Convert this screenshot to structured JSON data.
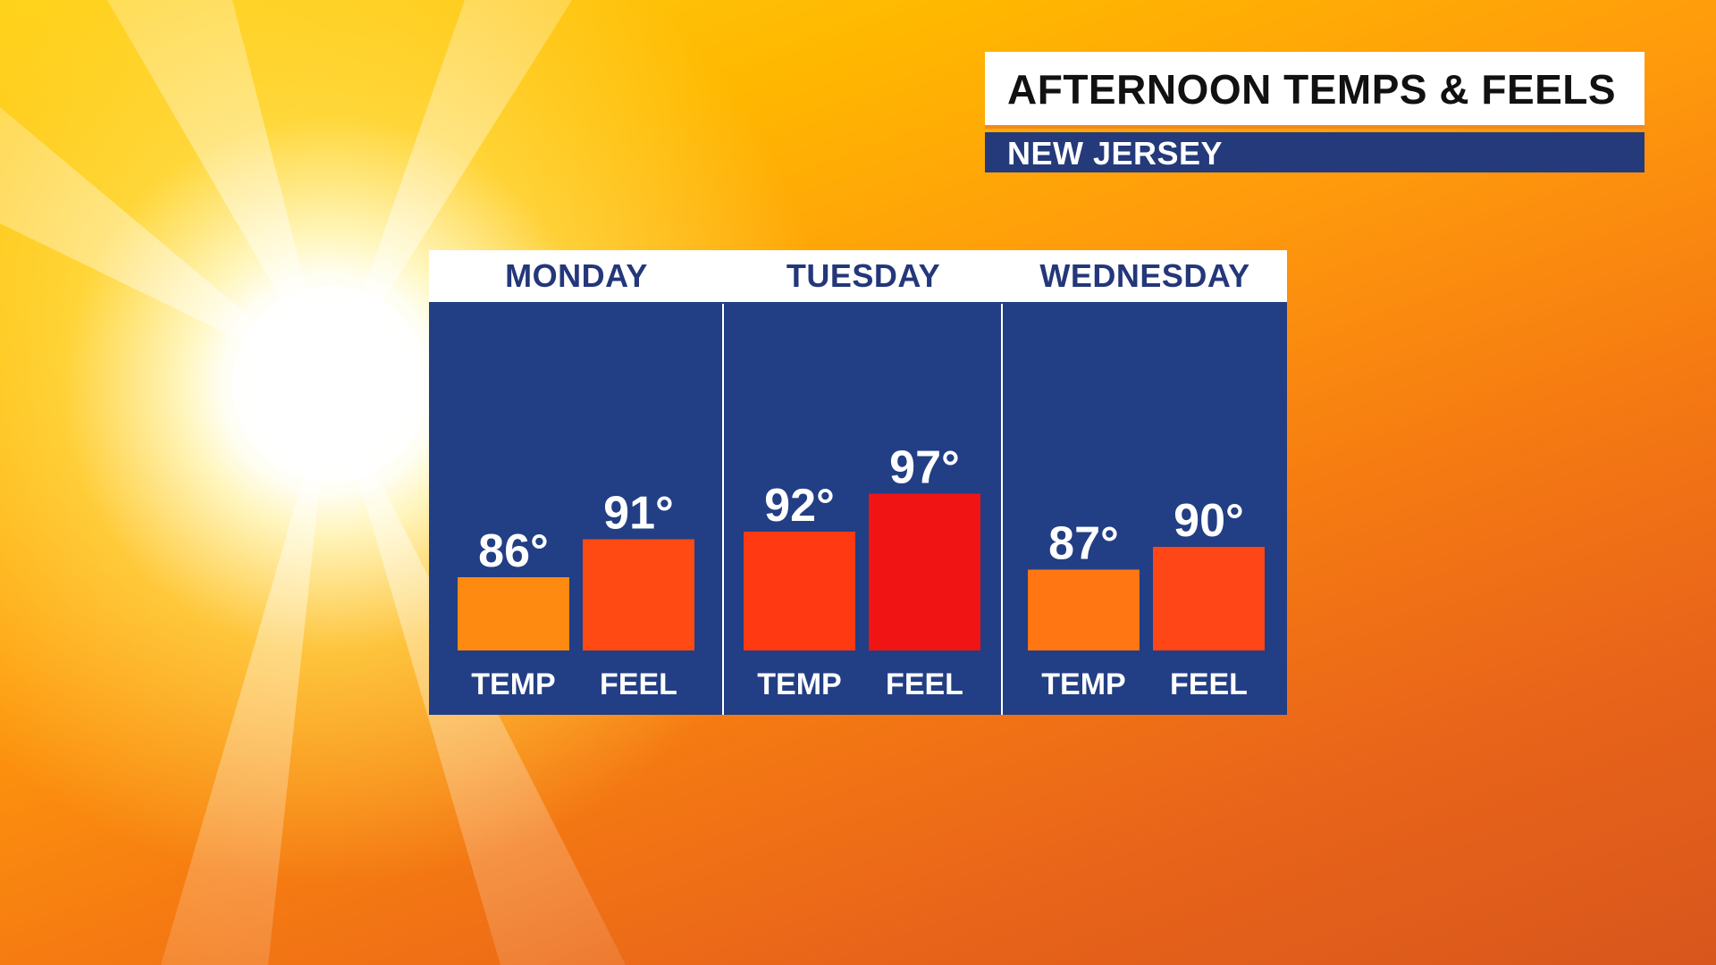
{
  "header": {
    "title": "AFTERNOON TEMPS & FEELS",
    "subtitle": "NEW JERSEY"
  },
  "colors": {
    "panel_blue": "#223e84",
    "header_text_blue": "#23377a",
    "bar_low": "#ff8a12",
    "bar_mid": "#ff3a12",
    "bar_high": "#f01414"
  },
  "chart_data": {
    "type": "bar",
    "title": "AFTERNOON TEMPS & FEELS",
    "subtitle": "NEW JERSEY",
    "groups": [
      {
        "day": "MONDAY",
        "bars": [
          {
            "label": "TEMP",
            "value": 86,
            "display": "86°",
            "color": "#ff8a12"
          },
          {
            "label": "FEEL",
            "value": 91,
            "display": "91°",
            "color": "#ff4a14"
          }
        ]
      },
      {
        "day": "TUESDAY",
        "bars": [
          {
            "label": "TEMP",
            "value": 92,
            "display": "92°",
            "color": "#ff3a12"
          },
          {
            "label": "FEEL",
            "value": 97,
            "display": "97°",
            "color": "#f01414"
          }
        ]
      },
      {
        "day": "WEDNESDAY",
        "bars": [
          {
            "label": "TEMP",
            "value": 87,
            "display": "87°",
            "color": "#ff7612"
          },
          {
            "label": "FEEL",
            "value": 90,
            "display": "90°",
            "color": "#ff4616"
          }
        ]
      }
    ]
  }
}
